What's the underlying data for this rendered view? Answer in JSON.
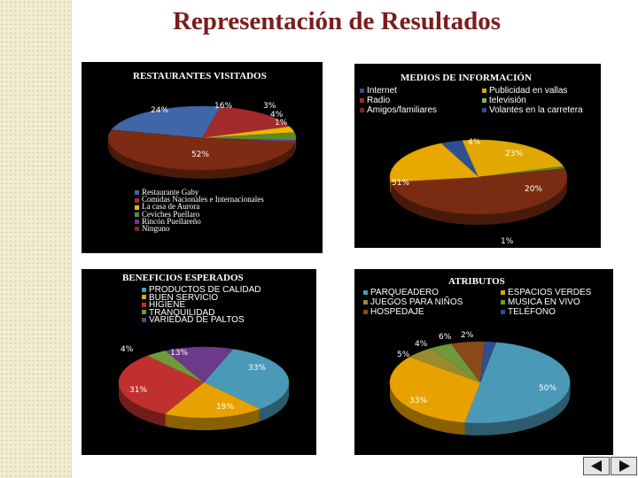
{
  "title": "Representación de Resultados",
  "chart_data": [
    {
      "type": "pie",
      "title": "RESTAURANTES VISITADOS",
      "legend_placement": "bottom-left",
      "categories": [
        "Restaurante Gaby",
        "Comidas Nacionales e Internacionales",
        "La casa de Aurora",
        "Ceviches Puellaro",
        "Rincón Puellareño",
        "Ninguno"
      ],
      "values": [
        24,
        16,
        3,
        4,
        1,
        52
      ],
      "labels": [
        "24%",
        "16%",
        "3%",
        "4%",
        "1%",
        "52%"
      ],
      "colors": [
        "#3f66a8",
        "#a32b2b",
        "#f0b400",
        "#5b8c2a",
        "#6b3a8a",
        "#7b2c12"
      ]
    },
    {
      "type": "pie",
      "title": "MEDIOS DE INFORMACIÓN",
      "legend_placement": "top",
      "categories": [
        "Internet",
        "Publicidad en vallas",
        "Radio",
        "televisión",
        "Amigos/familiares",
        "Volantes en la carretera"
      ],
      "values": [
        4,
        23,
        1,
        0,
        51,
        20
      ],
      "labels": [
        "4%",
        "23%",
        "1%",
        "",
        "51%",
        "20%"
      ],
      "colors": [
        "#2f4f8f",
        "#e0a800",
        "#5b8c2a",
        "#8fb04a",
        "#7a2c12",
        "#e8a800"
      ]
    },
    {
      "type": "pie",
      "title": "BENEFICIOS ESPERADOS",
      "legend_placement": "top",
      "categories": [
        "PRODUCTOS DE CALIDAD",
        "BUEN SERVICIO",
        "HIGIENE",
        "TRANQUILIDAD",
        "VARIEDAD DE PALTOS"
      ],
      "values": [
        33,
        19,
        31,
        4,
        13
      ],
      "labels": [
        "33%",
        "19%",
        "31%",
        "4%",
        "13%"
      ],
      "colors": [
        "#4a9ab7",
        "#e8a200",
        "#c0302e",
        "#6f9a3a",
        "#6b3a8a"
      ]
    },
    {
      "type": "pie",
      "title": "ATRIBUTOS",
      "legend_placement": "top",
      "categories": [
        "PARQUEADERO",
        "ESPACIOS VERDES",
        "JUEGOS PARA NIÑOS",
        "MUSICA EN VIVO",
        "HOSPEDAJE",
        "TELÉFONO"
      ],
      "values": [
        50,
        33,
        5,
        4,
        6,
        2
      ],
      "labels": [
        "50%",
        "33%",
        "5%",
        "4%",
        "6%",
        "2%"
      ],
      "colors": [
        "#4a9ab7",
        "#e8a200",
        "#9a8a30",
        "#6f9a3a",
        "#8a4a1a",
        "#2f4f8f"
      ]
    }
  ]
}
